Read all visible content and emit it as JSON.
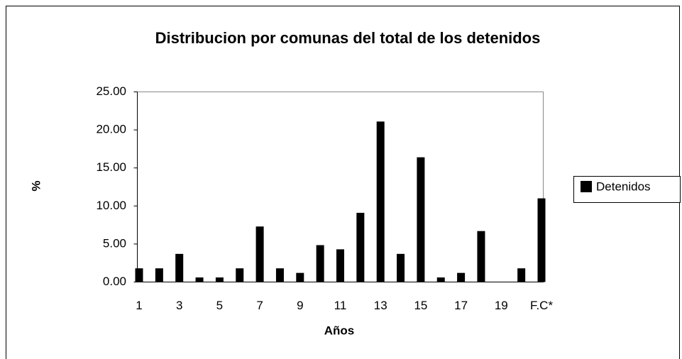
{
  "chart_data": {
    "type": "bar",
    "title": "Distribucion por comunas del total de los detenidos",
    "x_label": "Años",
    "y_label": "%",
    "categories": [
      "1",
      null,
      "3",
      null,
      "5",
      null,
      "7",
      null,
      "9",
      null,
      "11",
      null,
      "13",
      null,
      "15",
      null,
      "17",
      null,
      "19",
      null,
      "F.C*"
    ],
    "series": [
      {
        "name": "Detenidos",
        "color": "#000000",
        "values": [
          1.8,
          1.8,
          3.7,
          0.6,
          0.6,
          1.8,
          7.3,
          1.8,
          1.2,
          4.85,
          4.3,
          9.1,
          21.1,
          3.7,
          16.4,
          0.6,
          1.2,
          6.7,
          0,
          1.8,
          11.0
        ]
      }
    ],
    "ylim": [
      0,
      25
    ],
    "yticks": [
      {
        "value": 0,
        "label": "0.00"
      },
      {
        "value": 5,
        "label": "5.00"
      },
      {
        "value": 10,
        "label": "10.00"
      },
      {
        "value": 15,
        "label": "15.00"
      },
      {
        "value": 20,
        "label": "20.00"
      },
      {
        "value": 25,
        "label": "25.00"
      }
    ],
    "legend": "right"
  }
}
